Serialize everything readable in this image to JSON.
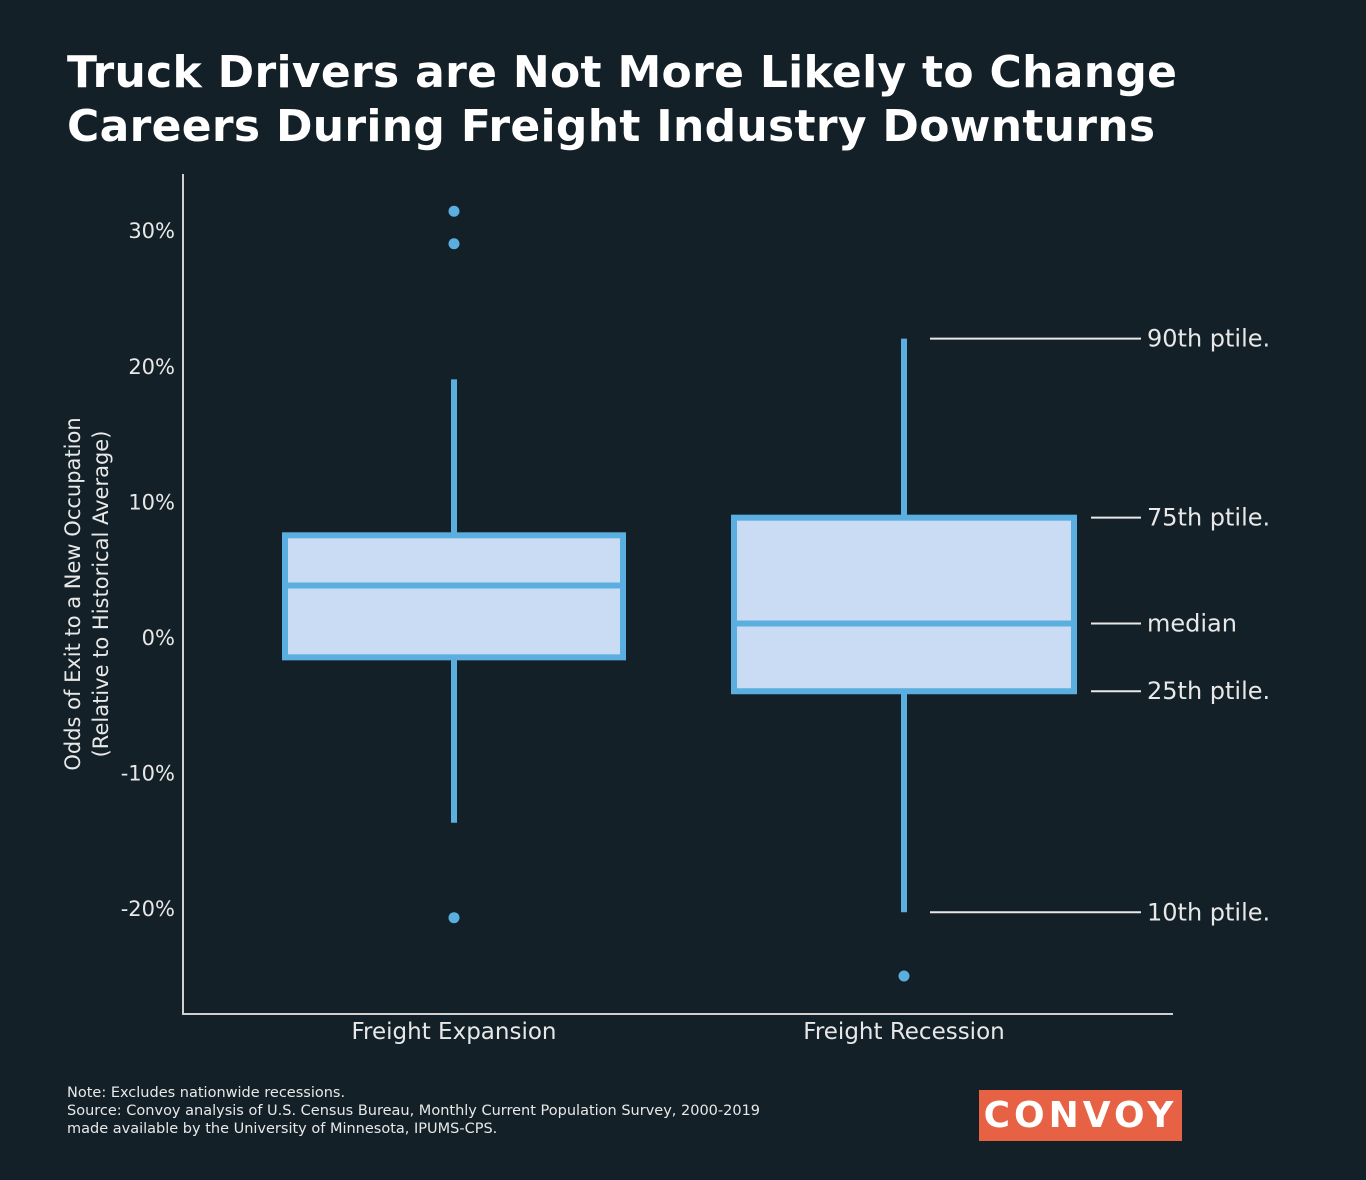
{
  "title_line1": "Truck Drivers are Not More Likely to Change",
  "title_line2": "Careers During Freight Industry Downturns",
  "chart_data": {
    "type": "box",
    "title": "Truck Drivers are Not More Likely to Change Careers During Freight Industry Downturns",
    "ylabel_line1": "Odds of Exit to a New Occupation",
    "ylabel_line2": "(Relative to Historical Average)",
    "ylim": [
      -28,
      34
    ],
    "yticks": [
      30,
      20,
      10,
      0,
      -10,
      -20
    ],
    "ytick_labels": [
      "30%",
      "20%",
      "10%",
      "0%",
      "-10%",
      "-20%"
    ],
    "categories": [
      "Freight Expansion",
      "Freight Recession"
    ],
    "boxes": [
      {
        "name": "Freight Expansion",
        "p10": -13.7,
        "p25": -1.5,
        "median": 3.8,
        "p75": 7.5,
        "p90": 19.0,
        "outliers": [
          31.4,
          29.0,
          -20.7
        ]
      },
      {
        "name": "Freight Recession",
        "p10": -20.3,
        "p25": -4.0,
        "median": 1.0,
        "p75": 8.8,
        "p90": 22.0,
        "outliers": [
          -25.0
        ]
      }
    ],
    "annotations": [
      "90th ptile.",
      "75th ptile.",
      "median",
      "25th ptile.",
      "10th ptile."
    ],
    "colors": {
      "stroke": "#5aaee0",
      "fill": "#c9dcf3",
      "axis": "#d0d0d0",
      "background": "#132027"
    }
  },
  "notes": {
    "note": "Note: Excludes nationwide recessions.",
    "source1": "Source: Convoy analysis of U.S. Census Bureau, Monthly Current Population Survey, 2000-2019",
    "source2": "made available by the University of Minnesota, IPUMS-CPS."
  },
  "logo": "CONVOY"
}
